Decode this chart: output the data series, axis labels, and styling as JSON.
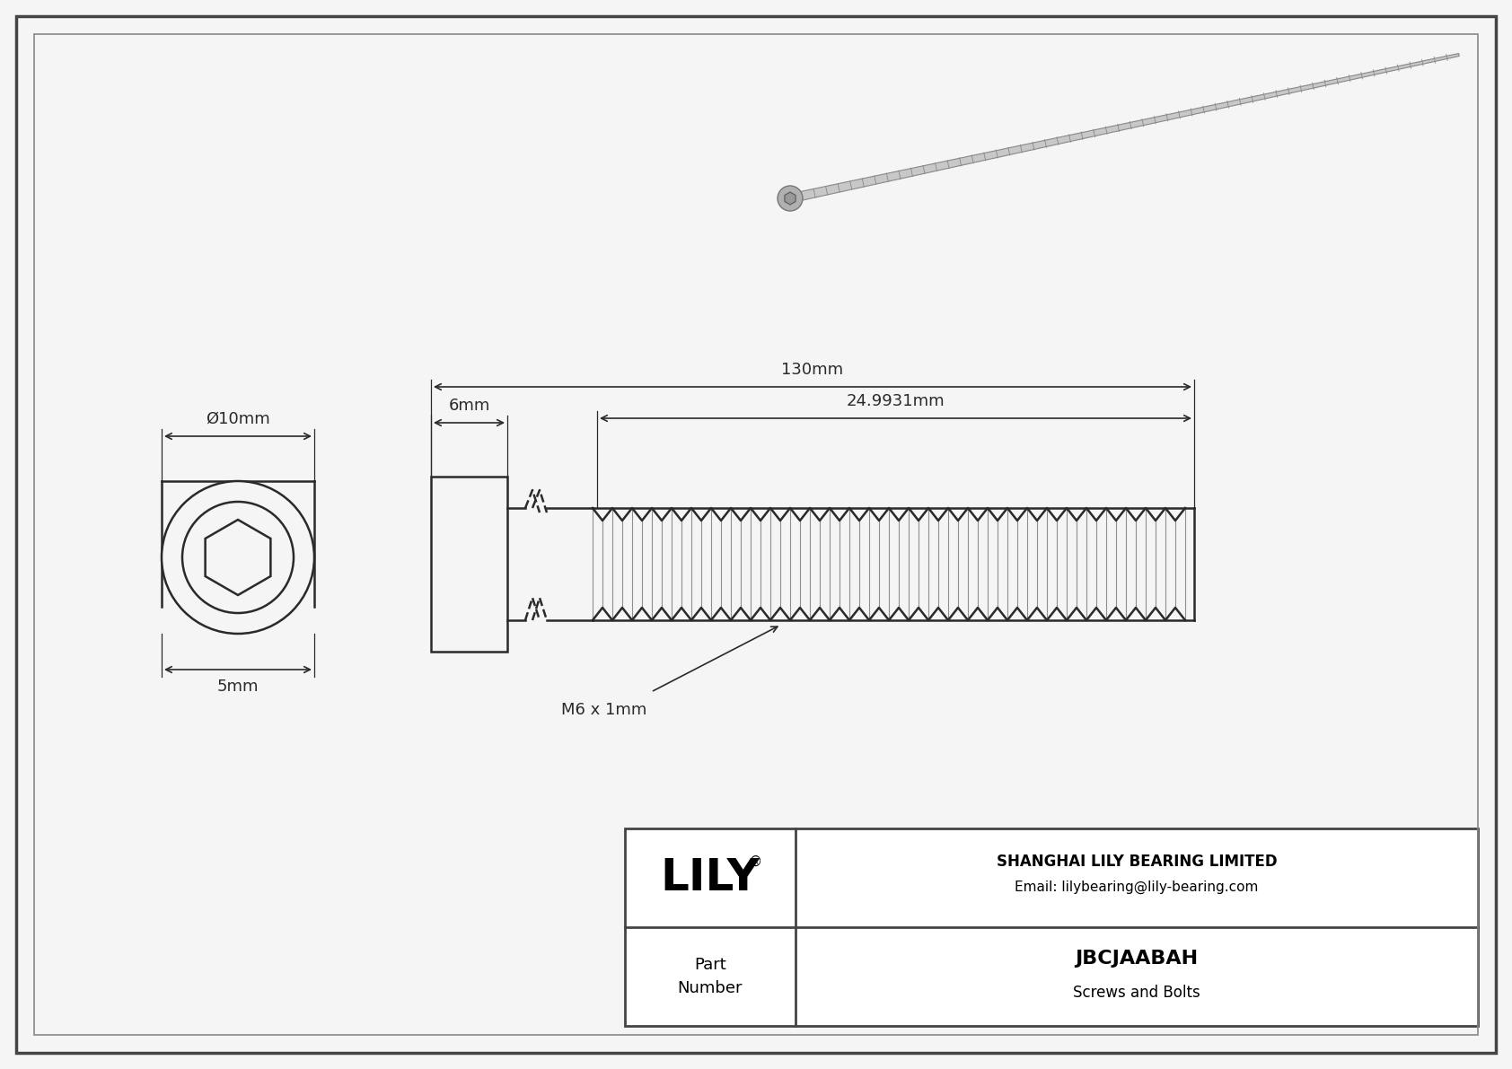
{
  "drawing_bg": "#f5f5f5",
  "line_color": "#2a2a2a",
  "dim_color": "#2a2a2a",
  "title_company": "SHANGHAI LILY BEARING LIMITED",
  "title_email": "Email: lilybearing@lily-bearing.com",
  "part_number": "JBCJAABAH",
  "part_category": "Screws and Bolts",
  "brand": "LILY",
  "dim_diameter": "Ø10mm",
  "dim_head_length": "6mm",
  "dim_total_length": "130mm",
  "dim_thread_length": "24.9931mm",
  "dim_bottom": "5mm",
  "dim_thread_label": "M6 x 1mm",
  "border_color": "#444444",
  "inner_border_color": "#888888"
}
